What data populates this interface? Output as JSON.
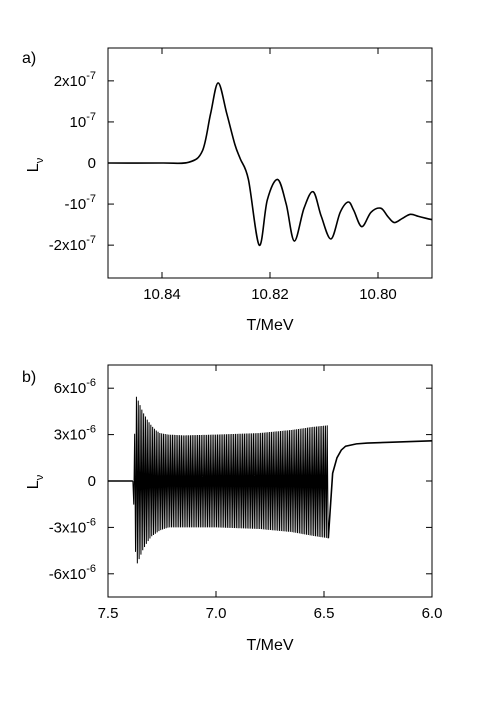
{
  "chart_data": [
    {
      "type": "line",
      "panel_label": "a)",
      "xlabel": "T/MeV",
      "ylabel": "L",
      "ylabel_sub": "ν",
      "xlim": [
        10.85,
        10.79
      ],
      "ylim": [
        -2.8e-07,
        2.8e-07
      ],
      "x_ticks": [
        10.84,
        10.82,
        10.8
      ],
      "x_tick_labels": [
        "10.84",
        "10.82",
        "10.80"
      ],
      "y_ticks": [
        2e-07,
        1e-07,
        0,
        -1e-07,
        -2e-07
      ],
      "y_tick_labels": [
        {
          "mant": "2x10",
          "exp": "-7"
        },
        {
          "mant": "10",
          "exp": "-7"
        },
        {
          "mant": "0",
          "exp": ""
        },
        {
          "mant": "-10",
          "exp": "-7"
        },
        {
          "mant": "-2x10",
          "exp": "-7"
        }
      ],
      "grid": false,
      "series": [
        {
          "x": [
            10.85,
            10.84,
            10.835,
            10.8325,
            10.831,
            10.8296,
            10.828,
            10.8265,
            10.8255,
            10.824,
            10.822,
            10.8205,
            10.8186,
            10.817,
            10.8155,
            10.8137,
            10.812,
            10.8105,
            10.8087,
            10.807,
            10.8055,
            10.8045,
            10.803,
            10.8013,
            10.7995,
            10.7982,
            10.797,
            10.7955,
            10.794,
            10.7925,
            10.791,
            10.79
          ],
          "y": [
            0,
            0,
            2e-09,
            3e-08,
            1.2e-07,
            1.95e-07,
            1.2e-07,
            4.5e-08,
            1e-08,
            -4e-08,
            -2e-07,
            -9e-08,
            -4e-08,
            -1e-07,
            -1.9e-07,
            -1.1e-07,
            -7e-08,
            -1.3e-07,
            -1.85e-07,
            -1.2e-07,
            -9.5e-08,
            -1.15e-07,
            -1.55e-07,
            -1.2e-07,
            -1.1e-07,
            -1.3e-07,
            -1.45e-07,
            -1.35e-07,
            -1.25e-07,
            -1.3e-07,
            -1.35e-07,
            -1.38e-07
          ]
        }
      ]
    },
    {
      "type": "line",
      "panel_label": "b)",
      "xlabel": "T/MeV",
      "ylabel": "L",
      "ylabel_sub": "ν",
      "xlim": [
        7.5,
        6.0
      ],
      "ylim": [
        -7.5e-06,
        7.5e-06
      ],
      "x_ticks": [
        7.5,
        7.0,
        6.5,
        6.0
      ],
      "x_tick_labels": [
        "7.5",
        "7.0",
        "6.5",
        "6.0"
      ],
      "y_ticks": [
        6e-06,
        3e-06,
        0,
        -3e-06,
        -6e-06
      ],
      "y_tick_labels": [
        {
          "mant": "6x10",
          "exp": "-6"
        },
        {
          "mant": "3x10",
          "exp": "-6"
        },
        {
          "mant": "0",
          "exp": ""
        },
        {
          "mant": "-3x10",
          "exp": "-6"
        },
        {
          "mant": "-6x10",
          "exp": "-6"
        }
      ],
      "grid": false,
      "oscillation_envelope": {
        "flat_start": [
          7.5,
          7.385
        ],
        "upper": {
          "x": [
            7.385,
            7.37,
            7.36,
            7.34,
            7.32,
            7.3,
            7.28,
            7.26,
            7.22,
            7.15,
            7.0,
            6.8,
            6.65,
            6.55,
            6.48
          ],
          "y": [
            0,
            5.5e-06,
            5.2e-06,
            4.5e-06,
            4e-06,
            3.6e-06,
            3.3e-06,
            3.1e-06,
            3e-06,
            2.95e-06,
            3e-06,
            3.1e-06,
            3.3e-06,
            3.5e-06,
            3.6e-06
          ]
        },
        "lower": {
          "x": [
            7.385,
            7.37,
            7.36,
            7.34,
            7.32,
            7.3,
            7.28,
            7.26,
            7.22,
            7.15,
            7.0,
            6.8,
            6.65,
            6.55,
            6.48
          ],
          "y": [
            0,
            -5.5e-06,
            -5.2e-06,
            -4.5e-06,
            -4e-06,
            -3.6e-06,
            -3.4e-06,
            -3.2e-06,
            -3e-06,
            -3e-06,
            -3e-06,
            -3.1e-06,
            -3.3e-06,
            -3.55e-06,
            -3.7e-06
          ]
        },
        "tail": {
          "x": [
            6.48,
            6.46,
            6.44,
            6.42,
            6.4,
            6.35,
            6.3,
            6.2,
            6.1,
            6.0
          ],
          "y": [
            -3.7e-06,
            5e-07,
            1.5e-06,
            2e-06,
            2.25e-06,
            2.4e-06,
            2.45e-06,
            2.5e-06,
            2.55e-06,
            2.6e-06
          ]
        }
      }
    }
  ]
}
